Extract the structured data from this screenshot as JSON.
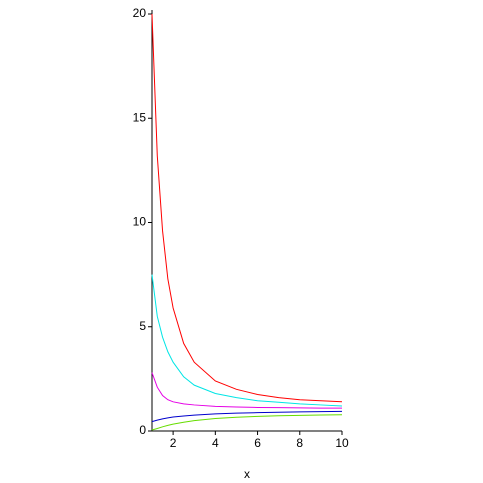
{
  "chart_data": {
    "type": "line",
    "x_label": "x",
    "x": [
      1,
      1.25,
      1.5,
      1.75,
      2,
      2.5,
      3,
      4,
      5,
      6,
      7,
      8,
      9,
      10
    ],
    "series": [
      {
        "color": "#ff0000",
        "values": [
          20,
          13.2,
          9.6,
          7.3,
          5.9,
          4.2,
          3.3,
          2.4,
          2.0,
          1.75,
          1.6,
          1.5,
          1.45,
          1.4
        ]
      },
      {
        "color": "#00e5e5",
        "values": [
          7.5,
          5.5,
          4.5,
          3.8,
          3.3,
          2.6,
          2.2,
          1.8,
          1.6,
          1.45,
          1.38,
          1.3,
          1.25,
          1.2
        ]
      },
      {
        "color": "#e500e5",
        "values": [
          2.8,
          2.1,
          1.7,
          1.5,
          1.4,
          1.3,
          1.25,
          1.18,
          1.15,
          1.13,
          1.12,
          1.11,
          1.1,
          1.1
        ]
      },
      {
        "color": "#0000cc",
        "values": [
          0.45,
          0.52,
          0.58,
          0.63,
          0.67,
          0.72,
          0.76,
          0.82,
          0.86,
          0.88,
          0.9,
          0.92,
          0.93,
          0.94
        ]
      },
      {
        "color": "#66dd00",
        "values": [
          0.05,
          0.12,
          0.2,
          0.27,
          0.33,
          0.42,
          0.5,
          0.6,
          0.66,
          0.7,
          0.73,
          0.75,
          0.77,
          0.78
        ]
      }
    ],
    "xlim": [
      1,
      10
    ],
    "xticks": [
      2,
      4,
      6,
      8,
      10
    ],
    "ylim": [
      0,
      20
    ],
    "yticks": [
      0,
      5,
      10,
      15,
      20
    ]
  }
}
